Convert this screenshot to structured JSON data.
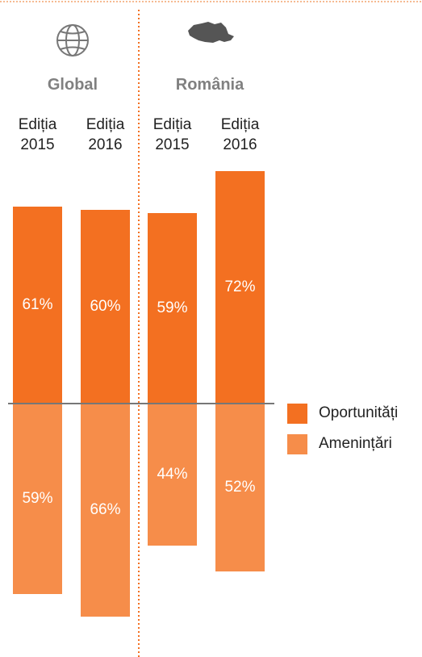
{
  "chart_data": {
    "type": "diverging-bar",
    "groups": [
      "Global",
      "România"
    ],
    "categories": [
      "Ediția 2015",
      "Ediția 2016",
      "Ediția 2015",
      "Ediția 2016"
    ],
    "series": [
      {
        "name": "Oportunități",
        "color": "#f37021",
        "values": [
          61,
          60,
          59,
          72
        ],
        "value_labels": [
          "61%",
          "60%",
          "59%",
          "72%"
        ]
      },
      {
        "name": "Amenințări",
        "color": "#f68d4a",
        "values": [
          59,
          66,
          44,
          52
        ],
        "value_labels": [
          "59%",
          "66%",
          "44%",
          "52%"
        ]
      }
    ]
  }
}
